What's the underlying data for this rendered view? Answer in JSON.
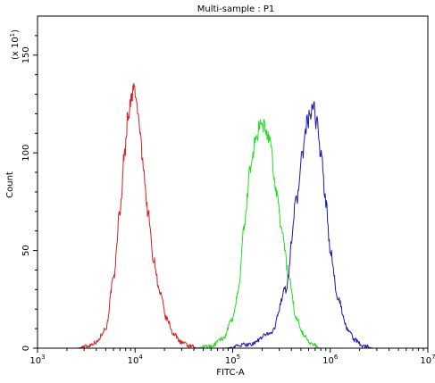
{
  "chart_data": {
    "type": "line",
    "title": "Multi-sample : P1",
    "xlabel": "FITC-A",
    "ylabel": "Count",
    "y_multiplier_label": "(x 10",
    "y_multiplier_exp": "1",
    "y_multiplier_close": ")",
    "x_scale": "log",
    "xlim": [
      1000,
      10000000
    ],
    "ylim": [
      0,
      170
    ],
    "grid": false,
    "x_ticks": [
      {
        "base": "10",
        "exp": "3",
        "value": 1000
      },
      {
        "base": "10",
        "exp": "4",
        "value": 10000
      },
      {
        "base": "10",
        "exp": "5",
        "value": 100000
      },
      {
        "base": "10",
        "exp": "6",
        "value": 1000000
      },
      {
        "base": "10",
        "exp": "7",
        "value": 10000000
      }
    ],
    "y_ticks": [
      {
        "label": "0",
        "value": 0
      },
      {
        "label": "50",
        "value": 50
      },
      {
        "label": "100",
        "value": 100
      },
      {
        "label": "150",
        "value": 150
      }
    ],
    "series": [
      {
        "color": "#d62020",
        "x": [
          2500,
          3200,
          4000,
          5000,
          6000,
          7000,
          7800,
          8500,
          9200,
          9700,
          10300,
          11000,
          12000,
          13500,
          15500,
          18000,
          21000,
          25000,
          30000,
          36000,
          45000
        ],
        "y": [
          0,
          1,
          3,
          10,
          35,
          70,
          100,
          120,
          127,
          134,
          126,
          115,
          95,
          70,
          45,
          28,
          15,
          7,
          3,
          1,
          0
        ]
      },
      {
        "color": "#22dd22",
        "x": [
          40000,
          60000,
          80000,
          100000,
          115000,
          130000,
          150000,
          170000,
          190000,
          210000,
          240000,
          280000,
          320000,
          380000,
          450000,
          550000,
          650000,
          800000
        ],
        "y": [
          0,
          1,
          5,
          15,
          30,
          60,
          90,
          105,
          113,
          114,
          105,
          80,
          60,
          35,
          15,
          6,
          2,
          0
        ]
      },
      {
        "color": "#1a1aaa",
        "x": [
          80000,
          150000,
          250000,
          350000,
          450000,
          520000,
          580000,
          630000,
          680000,
          730000,
          800000,
          900000,
          1000000,
          1200000,
          1500000,
          1800000,
          2200000,
          2800000
        ],
        "y": [
          0,
          2,
          8,
          30,
          75,
          100,
          115,
          120,
          122,
          115,
          100,
          75,
          50,
          25,
          10,
          4,
          1,
          0
        ]
      }
    ]
  }
}
